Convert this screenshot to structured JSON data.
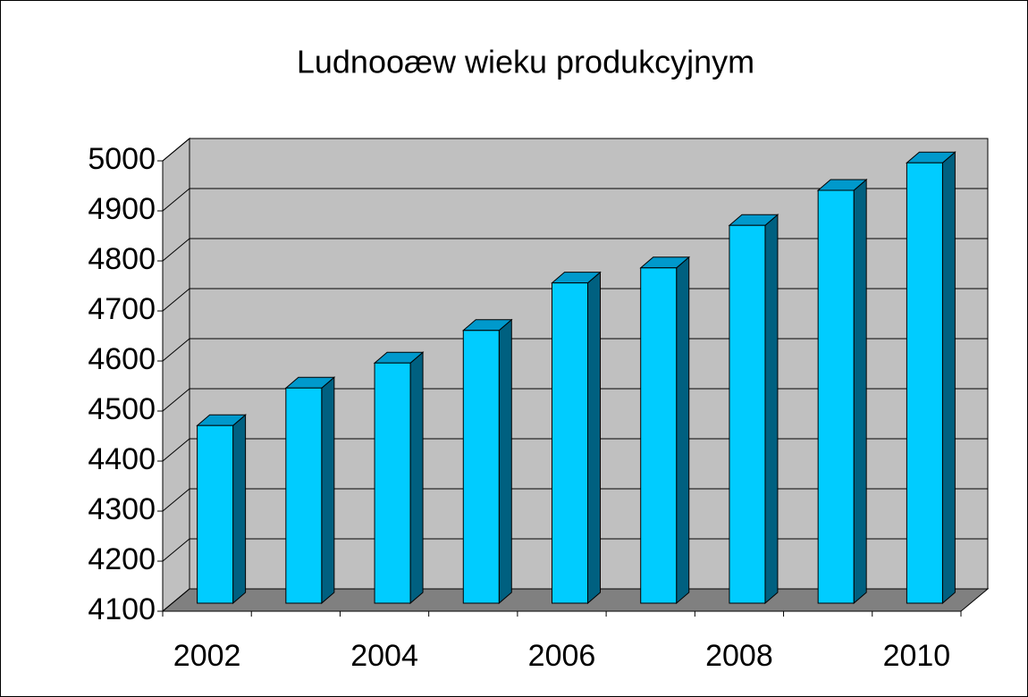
{
  "chart_data": {
    "type": "bar3d",
    "title": "Ludnooæw wieku produkcyjnym",
    "categories": [
      "2002",
      null,
      "2004",
      null,
      "2006",
      null,
      "2008",
      null,
      "2010"
    ],
    "values": [
      4455,
      4530,
      4580,
      4645,
      4740,
      4770,
      4855,
      4925,
      4980
    ],
    "color": "#00ccff",
    "ylim": [
      4100,
      5000
    ],
    "yticks": [
      4100,
      4200,
      4300,
      4400,
      4500,
      4600,
      4700,
      4800,
      4900,
      5000
    ],
    "grid": true
  }
}
